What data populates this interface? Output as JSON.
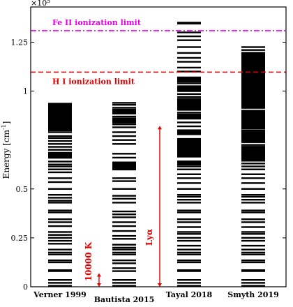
{
  "chart_data": {
    "type": "energy-level-diagram",
    "title": "",
    "ylabel": "Energy [cm",
    "ylabel_sup": "-1",
    "ylabel_close": "]",
    "exponent_label": "×10",
    "exponent_power": "5",
    "ylim": [
      0,
      1.43
    ],
    "y_ticks": [
      {
        "value": 0,
        "label": "0"
      },
      {
        "value": 0.25,
        "label": "0.25"
      },
      {
        "value": 0.5,
        "label": "0.5"
      },
      {
        "value": 1.0,
        "label": "1"
      },
      {
        "value": 1.25,
        "label": "1.25"
      }
    ],
    "categories": [
      "Verner 1999",
      "Bautista 2015",
      "Tayal 2018",
      "Smyth 2019"
    ],
    "limits": [
      {
        "name": "Fe II ionization limit",
        "value": 1.309,
        "color": "#e600e6",
        "style": "dashdot"
      },
      {
        "name": "H I ionization limit",
        "value": 1.097,
        "color": "#e00000",
        "style": "dashed"
      }
    ],
    "annotations": [
      {
        "text": "10000 K",
        "from": 0,
        "to": 0.0695,
        "category_between": [
          0,
          1
        ],
        "color": "#e00000"
      },
      {
        "text": "Lyα",
        "from": 0,
        "to": 0.8226,
        "category_between": [
          1,
          2
        ],
        "color": "#e00000"
      }
    ],
    "series": [
      {
        "levels": [
          0.005,
          0.02,
          0.035,
          0.08,
          0.085,
          0.125,
          0.135,
          0.165,
          0.175,
          0.19,
          0.22,
          0.235,
          0.25,
          0.265,
          0.28,
          0.31,
          0.33,
          0.345,
          0.38,
          0.39,
          0.43,
          0.44,
          0.455,
          0.47,
          0.5,
          0.535,
          0.555,
          0.585,
          0.6,
          0.615,
          0.625,
          0.64,
          0.66,
          0.685,
          0.7,
          0.715,
          0.73,
          0.745,
          0.76,
          0.77,
          0.79,
          0.8
        ],
        "bands": [
          [
            0.655,
            0.685
          ],
          [
            0.795,
            0.85
          ],
          [
            0.845,
            0.94
          ]
        ]
      },
      {
        "levels": [
          0.005,
          0.02,
          0.035,
          0.08,
          0.095,
          0.12,
          0.135,
          0.165,
          0.175,
          0.19,
          0.2,
          0.215,
          0.245,
          0.26,
          0.285,
          0.31,
          0.33,
          0.355,
          0.37,
          0.385,
          0.43,
          0.45,
          0.465,
          0.5,
          0.54,
          0.555,
          0.6,
          0.615,
          0.66,
          0.68,
          0.73,
          0.75,
          0.77,
          0.79,
          0.815,
          0.83,
          0.85,
          0.87,
          0.885,
          0.9,
          0.915,
          0.93,
          0.94
        ],
        "bands": [
          [
            0.595,
            0.64
          ],
          [
            0.835,
            0.865
          ],
          [
            0.885,
            0.91
          ]
        ]
      },
      {
        "levels": [
          0.005,
          0.02,
          0.035,
          0.08,
          0.085,
          0.125,
          0.135,
          0.165,
          0.175,
          0.19,
          0.21,
          0.235,
          0.25,
          0.27,
          0.28,
          0.305,
          0.33,
          0.345,
          0.38,
          0.39,
          0.43,
          0.445,
          0.46,
          0.47,
          0.5,
          0.53,
          0.555,
          0.575,
          0.6,
          0.615,
          0.625,
          0.64,
          0.665,
          0.7,
          0.72,
          0.74,
          0.75,
          0.78,
          0.79,
          0.8,
          0.82,
          0.84,
          0.86,
          0.87,
          0.875,
          0.89,
          0.91,
          0.93,
          0.94,
          0.96,
          0.97,
          0.985,
          1.0,
          1.01,
          1.025,
          1.04,
          1.055,
          1.07,
          1.1,
          1.12,
          1.15,
          1.17,
          1.195,
          1.225,
          1.26,
          1.28,
          1.3,
          1.345,
          1.35
        ],
        "bands": [
          [
            0.62,
            0.645
          ],
          [
            0.665,
            0.76
          ],
          [
            0.775,
            0.8
          ],
          [
            0.855,
            0.885
          ],
          [
            0.9,
            0.96
          ],
          [
            1.0,
            1.025
          ],
          [
            1.045,
            1.07
          ]
        ]
      },
      {
        "levels": [
          0.005,
          0.02,
          0.035,
          0.08,
          0.085,
          0.125,
          0.135,
          0.165,
          0.175,
          0.19,
          0.21,
          0.235,
          0.25,
          0.27,
          0.28,
          0.305,
          0.33,
          0.345,
          0.38,
          0.39,
          0.43,
          0.445,
          0.46,
          0.47,
          0.5,
          0.53,
          0.555,
          0.575,
          0.6,
          0.615,
          0.63,
          0.67,
          0.69,
          0.71,
          0.725,
          0.74,
          0.75,
          0.77,
          0.79,
          0.8,
          0.81,
          0.825,
          0.84,
          0.86,
          0.87,
          0.9,
          0.92,
          0.94,
          0.96,
          1.0,
          1.03,
          1.05,
          1.09,
          1.13,
          1.16,
          1.19,
          1.21,
          1.225
        ],
        "bands": [
          [
            0.64,
            0.72
          ],
          [
            0.735,
            0.8
          ],
          [
            0.81,
            0.9
          ],
          [
            0.91,
            1.2
          ]
        ]
      }
    ],
    "grid": false,
    "legend": "none"
  }
}
